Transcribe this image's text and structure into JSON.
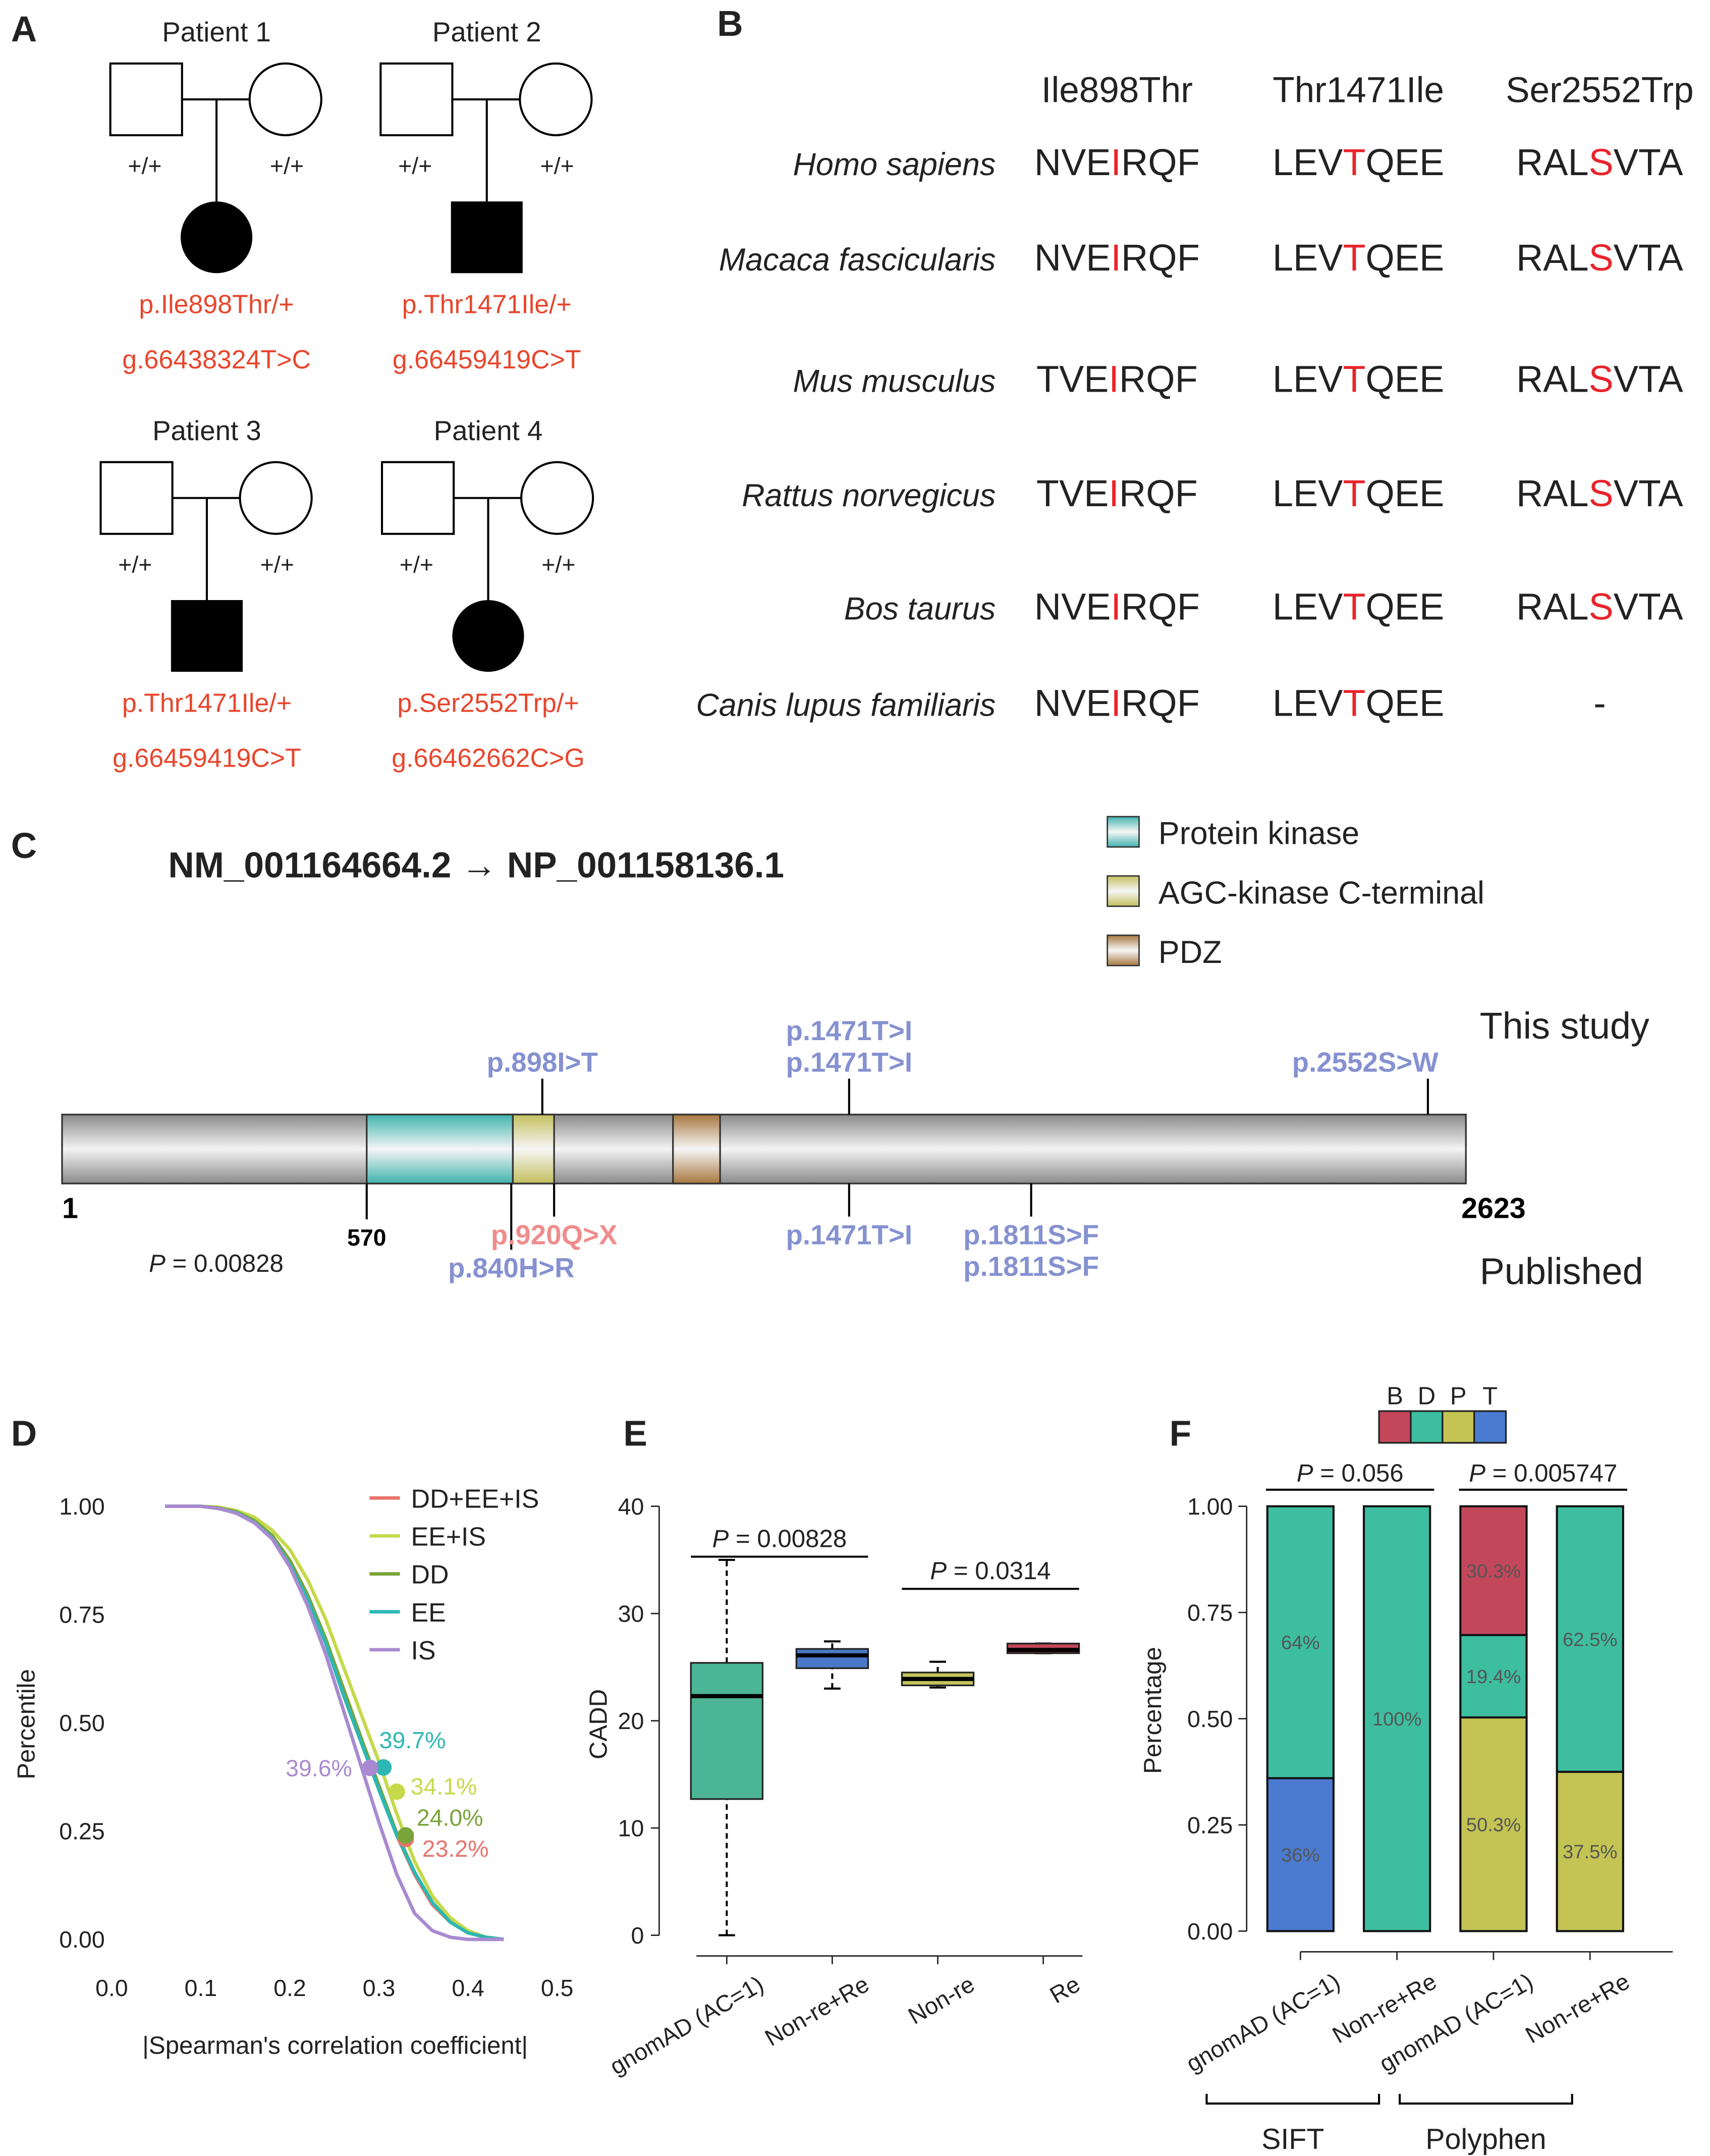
{
  "panel_a": {
    "label": "A",
    "pedigrees": [
      {
        "title": "Patient 1",
        "father_genotype": "+/+",
        "mother_genotype": "+/+",
        "proband_shape": "circle",
        "protein_change": "p.Ile898Thr/+",
        "genomic_change": "g.66438324T>C"
      },
      {
        "title": "Patient 2",
        "father_genotype": "+/+",
        "mother_genotype": "+/+",
        "proband_shape": "square",
        "protein_change": "p.Thr1471Ile/+",
        "genomic_change": "g.66459419C>T"
      },
      {
        "title": "Patient 3",
        "father_genotype": "+/+",
        "mother_genotype": "+/+",
        "proband_shape": "square",
        "protein_change": "p.Thr1471Ile/+",
        "genomic_change": "g.66459419C>T"
      },
      {
        "title": "Patient 4",
        "father_genotype": "+/+",
        "mother_genotype": "+/+",
        "proband_shape": "circle",
        "protein_change": "p.Ser2552Trp/+",
        "genomic_change": "g.66462662C>G"
      }
    ]
  },
  "panel_b": {
    "label": "B",
    "columns": [
      "Ile898Thr",
      "Thr1471Ile",
      "Ser2552Trp"
    ],
    "highlight_color": "#e8242a",
    "rows": [
      {
        "species": "Homo sapiens",
        "sequences": [
          [
            "NVE",
            "I",
            "RQF"
          ],
          [
            "LEV",
            "T",
            "QEE"
          ],
          [
            "RAL",
            "S",
            "VTA"
          ]
        ]
      },
      {
        "species": "Macaca fascicularis",
        "sequences": [
          [
            "NVE",
            "I",
            "RQF"
          ],
          [
            "LEV",
            "T",
            "QEE"
          ],
          [
            "RAL",
            "S",
            "VTA"
          ]
        ]
      },
      {
        "species": "Mus musculus",
        "sequences": [
          [
            "TVE",
            "I",
            "RQF"
          ],
          [
            "LEV",
            "T",
            "QEE"
          ],
          [
            "RAL",
            "S",
            "VTA"
          ]
        ]
      },
      {
        "species": "Rattus norvegicus",
        "sequences": [
          [
            "TVE",
            "I",
            "RQF"
          ],
          [
            "LEV",
            "T",
            "QEE"
          ],
          [
            "RAL",
            "S",
            "VTA"
          ]
        ]
      },
      {
        "species": "Bos taurus",
        "sequences": [
          [
            "NVE",
            "I",
            "RQF"
          ],
          [
            "LEV",
            "T",
            "QEE"
          ],
          [
            "RAL",
            "S",
            "VTA"
          ]
        ]
      },
      {
        "species": "Canis lupus familiaris",
        "sequences": [
          [
            "NVE",
            "I",
            "RQF"
          ],
          [
            "LEV",
            "T",
            "QEE"
          ],
          [
            "-"
          ]
        ]
      }
    ]
  },
  "panel_c": {
    "label": "C",
    "title": "NM_001164664.2 → NP_001158136.1",
    "length_ticks": [
      1,
      570,
      2623
    ],
    "domains": [
      {
        "name": "Protein kinase",
        "start": 570,
        "end": 843,
        "color": "#3fb3ae"
      },
      {
        "name": "AGC-kinase C-terminal",
        "start": 843,
        "end": 920,
        "color": "#c4bf5e"
      },
      {
        "name": "PDZ",
        "start": 1142,
        "end": 1230,
        "color": "#a8773f"
      }
    ],
    "tracks": [
      {
        "name": "This study",
        "side": "top",
        "variants": [
          {
            "position": 898,
            "labels": [
              "p.898I>T"
            ],
            "color": "#8591d0"
          },
          {
            "position": 1471,
            "labels": [
              "p.1471T>I",
              "p.1471T>I"
            ],
            "color": "#8591d0"
          },
          {
            "position": 2552,
            "labels": [
              "p.2552S>W"
            ],
            "color": "#8591d0"
          }
        ]
      },
      {
        "name": "Published",
        "side": "bottom",
        "variants": [
          {
            "position": 840,
            "labels": [
              "p.840H>R"
            ],
            "color": "#8591d0"
          },
          {
            "position": 920,
            "labels": [
              "p.920Q>X"
            ],
            "color": "#f08c8c"
          },
          {
            "position": 1471,
            "labels": [
              "p.1471T>I"
            ],
            "color": "#8591d0"
          },
          {
            "position": 1811,
            "labels": [
              "p.1811S>F",
              "p.1811S>F"
            ],
            "color": "#8591d0"
          }
        ]
      }
    ],
    "p_value": {
      "symbol": "P",
      "text": "= 0.00828"
    }
  },
  "chart_data": [
    {
      "label": "D",
      "type": "line",
      "x_label": "|Spearman's correlation coefficient|",
      "y_label": "Percentile",
      "legend": "top-right",
      "xlim": [
        0,
        0.5
      ],
      "xticks": [
        {
          "value": 0,
          "label": "0.0"
        },
        0.1,
        0.2,
        0.3,
        0.4,
        0.5
      ],
      "ylim": [
        0,
        1
      ],
      "yticks": [
        {
          "value": 0,
          "label": "0.00"
        },
        {
          "value": 0.25,
          "label": "0.25"
        },
        {
          "value": 0.5,
          "label": "0.50"
        },
        {
          "value": 0.75,
          "label": "0.75"
        },
        {
          "value": 1,
          "label": "1.00"
        }
      ],
      "x": [
        0.06,
        0.08,
        0.1,
        0.12,
        0.14,
        0.16,
        0.18,
        0.2,
        0.22,
        0.24,
        0.26,
        0.28,
        0.3,
        0.32,
        0.34,
        0.36,
        0.38,
        0.4,
        0.42,
        0.44
      ],
      "series": [
        {
          "name": "DD+EE+IS",
          "color": "#e8736d",
          "values": [
            1,
            1,
            1,
            0.995,
            0.985,
            0.965,
            0.93,
            0.87,
            0.79,
            0.69,
            0.57,
            0.46,
            0.35,
            0.24,
            0.15,
            0.08,
            0.04,
            0.015,
            0.005,
            0
          ],
          "marker": {
            "x": 0.33,
            "value": 0.232,
            "label": "23.2%"
          }
        },
        {
          "name": "EE+IS",
          "color": "#c6d94b",
          "values": [
            1,
            1,
            1,
            0.998,
            0.99,
            0.975,
            0.945,
            0.9,
            0.83,
            0.74,
            0.63,
            0.52,
            0.41,
            0.29,
            0.18,
            0.1,
            0.05,
            0.02,
            0.005,
            0
          ],
          "marker": {
            "x": 0.32,
            "value": 0.341,
            "label": "34.1%"
          }
        },
        {
          "name": "DD",
          "color": "#79a43a",
          "values": [
            1,
            1,
            1,
            0.996,
            0.987,
            0.967,
            0.933,
            0.875,
            0.795,
            0.695,
            0.58,
            0.465,
            0.355,
            0.245,
            0.155,
            0.085,
            0.04,
            0.015,
            0.005,
            0
          ],
          "marker": {
            "x": 0.33,
            "value": 0.24,
            "label": "24.0%"
          }
        },
        {
          "name": "EE",
          "color": "#2db7b4",
          "values": [
            1,
            1,
            1,
            0.995,
            0.985,
            0.963,
            0.927,
            0.865,
            0.785,
            0.685,
            0.565,
            0.455,
            0.345,
            0.24,
            0.155,
            0.085,
            0.04,
            0.015,
            0.005,
            0
          ],
          "marker": {
            "x": 0.305,
            "value": 0.397,
            "label": "39.7%"
          }
        },
        {
          "name": "IS",
          "color": "#a98ad0",
          "values": [
            1,
            1,
            1,
            0.995,
            0.984,
            0.962,
            0.925,
            0.86,
            0.77,
            0.66,
            0.53,
            0.4,
            0.27,
            0.15,
            0.06,
            0.02,
            0.005,
            0,
            0,
            0
          ],
          "marker": {
            "x": 0.29,
            "value": 0.396,
            "label": "39.6%"
          }
        }
      ]
    },
    {
      "label": "E",
      "type": "box",
      "y_label": "CADD",
      "ylim": [
        0,
        40
      ],
      "yticks": [
        0,
        10,
        20,
        30,
        40
      ],
      "categories": [
        "gnomAD (AC=1)",
        "Non-re+Re",
        "Non-re",
        "Re"
      ],
      "boxes": [
        {
          "min": 0,
          "q1": 12.7,
          "median": 22.3,
          "q3": 25.4,
          "max": 35,
          "color": "#4bb596"
        },
        {
          "min": 23,
          "q1": 24.9,
          "median": 26.1,
          "q3": 26.7,
          "max": 27.4,
          "color": "#4a78c8"
        },
        {
          "min": 23.1,
          "q1": 23.3,
          "median": 23.9,
          "q3": 24.5,
          "max": 25.5,
          "color": "#c4c45a"
        },
        {
          "min": 26.3,
          "q1": 26.3,
          "median": 26.6,
          "q3": 27.2,
          "max": 27.2,
          "color": "#c0475b"
        }
      ],
      "brackets": [
        {
          "between": [
            0,
            1
          ],
          "y": 35.3,
          "symbol": "P",
          "text": "= 0.00828"
        },
        {
          "between": [
            2,
            3
          ],
          "y": 32.3,
          "symbol": "P",
          "text": "= 0.0314"
        }
      ]
    },
    {
      "label": "F",
      "type": "stacked_bar",
      "y_label": "Percentage",
      "ylim": [
        0,
        1
      ],
      "yticks": [
        {
          "value": 0,
          "label": "0.00"
        },
        {
          "value": 0.25,
          "label": "0.25"
        },
        {
          "value": 0.5,
          "label": "0.50"
        },
        {
          "value": 0.75,
          "label": "0.75"
        },
        {
          "value": 1,
          "label": "1.00"
        }
      ],
      "categories": [
        "gnomAD (AC=1)",
        "Non-re+Re",
        "gnomAD (AC=1)",
        "Non-re+Re"
      ],
      "groups": [
        {
          "name": "SIFT",
          "between": [
            0,
            1
          ]
        },
        {
          "name": "Polyphen",
          "between": [
            2,
            3
          ]
        }
      ],
      "series": [
        {
          "name": "B",
          "color": "#c3475b",
          "values": [
            0,
            0,
            0.303,
            0
          ],
          "value_labels": [
            null,
            null,
            "30.3%",
            null
          ]
        },
        {
          "name": "D",
          "color": "#3dbea0",
          "values": [
            0.64,
            1,
            0.194,
            0.625
          ],
          "value_labels": [
            "64%",
            "100%",
            "19.4%",
            "62.5%"
          ]
        },
        {
          "name": "P",
          "color": "#c3c453",
          "values": [
            0,
            0,
            0.503,
            0.375
          ],
          "value_labels": [
            null,
            null,
            "50.3%",
            "37.5%"
          ]
        },
        {
          "name": "T",
          "color": "#4a7bd0",
          "values": [
            0.36,
            0,
            0,
            0
          ],
          "value_labels": [
            "36%",
            null,
            null,
            null
          ]
        }
      ],
      "brackets": [
        {
          "between": [
            0,
            1
          ],
          "symbol": "P",
          "text": "= 0.056"
        },
        {
          "between": [
            2,
            3
          ],
          "symbol": "P",
          "text": "= 0.005747"
        }
      ]
    }
  ]
}
